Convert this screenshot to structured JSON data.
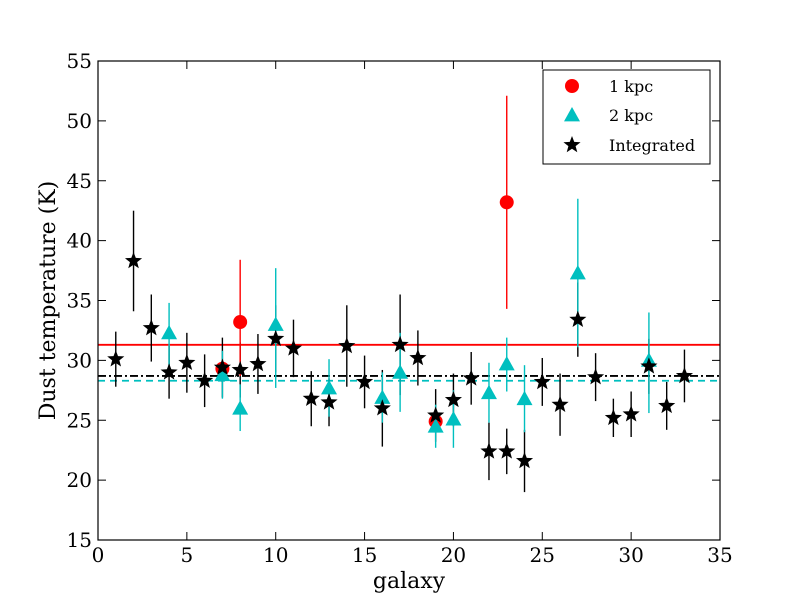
{
  "chart_data": {
    "type": "scatter",
    "title": "",
    "xlabel": "galaxy",
    "ylabel": "Dust temperature (K)",
    "xlim": [
      0,
      35
    ],
    "ylim": [
      15,
      55
    ],
    "xticks": [
      0,
      5,
      10,
      15,
      20,
      25,
      30,
      35
    ],
    "yticks": [
      15,
      20,
      25,
      30,
      35,
      40,
      45,
      50,
      55
    ],
    "legend_position": "top-right",
    "colors": {
      "1kpc": "#ff0000",
      "2kpc": "#00bfbf",
      "integrated": "#000000"
    },
    "series": [
      {
        "name": "1 kpc",
        "marker": "circle",
        "points": [
          {
            "x": 7,
            "y": 29.3,
            "err_low": 0.5,
            "err_high": 0.5
          },
          {
            "x": 8,
            "y": 33.2,
            "err_low": 4.5,
            "err_high": 5.2
          },
          {
            "x": 19,
            "y": 24.9,
            "err_low": 0.4,
            "err_high": 0.4
          },
          {
            "x": 23,
            "y": 43.2,
            "err_low": 8.9,
            "err_high": 8.9
          }
        ],
        "mean_line": 31.3
      },
      {
        "name": "2 kpc",
        "marker": "triangle",
        "points": [
          {
            "x": 4,
            "y": 32.3,
            "err_low": 3.0,
            "err_high": 2.5
          },
          {
            "x": 7,
            "y": 28.8,
            "err_low": 2.0,
            "err_high": 2.0
          },
          {
            "x": 8,
            "y": 26.0,
            "err_low": 1.9,
            "err_high": 2.0
          },
          {
            "x": 10,
            "y": 33.0,
            "err_low": 5.3,
            "err_high": 4.7
          },
          {
            "x": 13,
            "y": 27.7,
            "err_low": 2.4,
            "err_high": 2.4
          },
          {
            "x": 16,
            "y": 26.9,
            "err_low": 2.1,
            "err_high": 2.1
          },
          {
            "x": 17,
            "y": 29.0,
            "err_low": 3.3,
            "err_high": 3.3
          },
          {
            "x": 19,
            "y": 24.5,
            "err_low": 1.8,
            "err_high": 1.8
          },
          {
            "x": 20,
            "y": 25.1,
            "err_low": 2.4,
            "err_high": 2.4
          },
          {
            "x": 22,
            "y": 27.3,
            "err_low": 2.5,
            "err_high": 2.5
          },
          {
            "x": 23,
            "y": 29.7,
            "err_low": 2.3,
            "err_high": 2.2
          },
          {
            "x": 24,
            "y": 26.8,
            "err_low": 2.8,
            "err_high": 2.8
          },
          {
            "x": 27,
            "y": 37.3,
            "err_low": 6.2,
            "err_high": 6.2
          },
          {
            "x": 31,
            "y": 30.0,
            "err_low": 4.4,
            "err_high": 4.0
          }
        ],
        "mean_line": 28.3
      },
      {
        "name": "Integrated",
        "marker": "star",
        "points": [
          {
            "x": 1,
            "y": 30.1,
            "err_low": 2.3,
            "err_high": 2.3
          },
          {
            "x": 2,
            "y": 38.3,
            "err_low": 4.2,
            "err_high": 4.2
          },
          {
            "x": 3,
            "y": 32.7,
            "err_low": 2.8,
            "err_high": 2.8
          },
          {
            "x": 4,
            "y": 29.0,
            "err_low": 2.2,
            "err_high": 2.2
          },
          {
            "x": 5,
            "y": 29.8,
            "err_low": 2.5,
            "err_high": 2.5
          },
          {
            "x": 6,
            "y": 28.3,
            "err_low": 2.2,
            "err_high": 2.2
          },
          {
            "x": 7,
            "y": 29.4,
            "err_low": 2.5,
            "err_high": 2.5
          },
          {
            "x": 8,
            "y": 29.2,
            "err_low": 2.3,
            "err_high": 2.3
          },
          {
            "x": 9,
            "y": 29.7,
            "err_low": 2.5,
            "err_high": 2.5
          },
          {
            "x": 10,
            "y": 31.8,
            "err_low": 2.8,
            "err_high": 2.8
          },
          {
            "x": 11,
            "y": 31.0,
            "err_low": 2.4,
            "err_high": 2.4
          },
          {
            "x": 12,
            "y": 26.8,
            "err_low": 2.3,
            "err_high": 2.3
          },
          {
            "x": 13,
            "y": 26.5,
            "err_low": 2.0,
            "err_high": 2.0
          },
          {
            "x": 14,
            "y": 31.2,
            "err_low": 3.4,
            "err_high": 3.4
          },
          {
            "x": 15,
            "y": 28.2,
            "err_low": 2.2,
            "err_high": 2.2
          },
          {
            "x": 16,
            "y": 26.0,
            "err_low": 3.2,
            "err_high": 3.2
          },
          {
            "x": 17,
            "y": 31.3,
            "err_low": 4.2,
            "err_high": 4.2
          },
          {
            "x": 18,
            "y": 30.2,
            "err_low": 2.3,
            "err_high": 2.3
          },
          {
            "x": 19,
            "y": 25.4,
            "err_low": 2.2,
            "err_high": 2.2
          },
          {
            "x": 20,
            "y": 26.7,
            "err_low": 2.2,
            "err_high": 2.2
          },
          {
            "x": 21,
            "y": 28.5,
            "err_low": 2.2,
            "err_high": 2.2
          },
          {
            "x": 22,
            "y": 22.4,
            "err_low": 2.4,
            "err_high": 2.4
          },
          {
            "x": 23,
            "y": 22.4,
            "err_low": 1.9,
            "err_high": 1.9
          },
          {
            "x": 24,
            "y": 21.6,
            "err_low": 2.6,
            "err_high": 2.6
          },
          {
            "x": 25,
            "y": 28.2,
            "err_low": 2.0,
            "err_high": 2.0
          },
          {
            "x": 26,
            "y": 26.3,
            "err_low": 2.6,
            "err_high": 2.6
          },
          {
            "x": 27,
            "y": 33.4,
            "err_low": 3.1,
            "err_high": 3.1
          },
          {
            "x": 28,
            "y": 28.6,
            "err_low": 2.0,
            "err_high": 2.0
          },
          {
            "x": 29,
            "y": 25.2,
            "err_low": 1.6,
            "err_high": 1.6
          },
          {
            "x": 30,
            "y": 25.5,
            "err_low": 1.9,
            "err_high": 1.9
          },
          {
            "x": 31,
            "y": 29.5,
            "err_low": 2.3,
            "err_high": 2.3
          },
          {
            "x": 32,
            "y": 26.2,
            "err_low": 2.0,
            "err_high": 2.0
          },
          {
            "x": 33,
            "y": 28.7,
            "err_low": 2.2,
            "err_high": 2.2
          }
        ],
        "mean_line": 28.7
      }
    ]
  }
}
